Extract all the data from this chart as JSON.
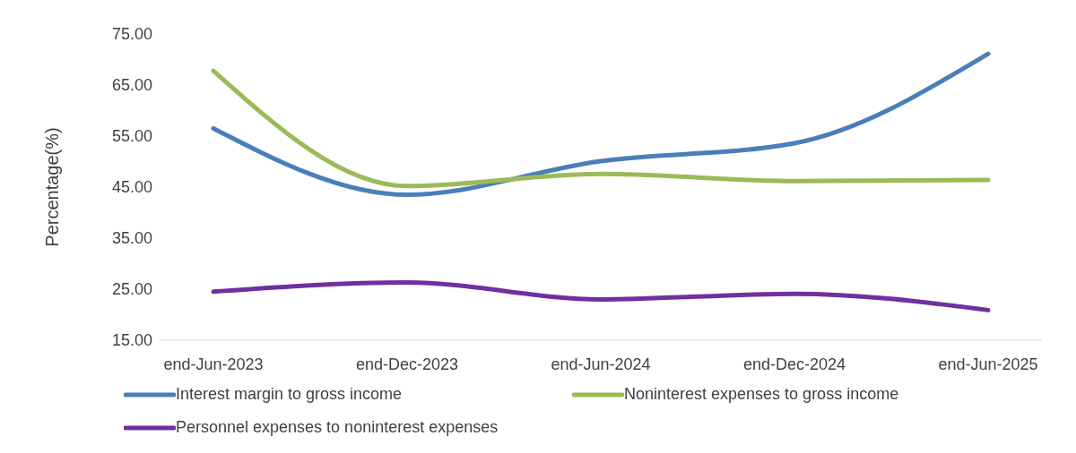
{
  "chart_data": {
    "type": "line",
    "ylabel": "Percentage(%)",
    "categories": [
      "end-Jun-2023",
      "end-Dec-2023",
      "end-Jun-2024",
      "end-Dec-2024",
      "end-Jun-2025"
    ],
    "series": [
      {
        "name": "Interest margin to gross income",
        "color": "#4a7ebb",
        "values": [
          56.5,
          43.5,
          50.1,
          53.6,
          71.1
        ]
      },
      {
        "name": "Noninterest expenses to gross income",
        "color": "#9bbb59",
        "values": [
          67.8,
          45.2,
          47.6,
          46.2,
          46.4
        ]
      },
      {
        "name": "Personnel expenses to noninterest expenses",
        "color": "#7030a0",
        "values": [
          24.5,
          26.3,
          23.0,
          24.1,
          20.9
        ]
      }
    ],
    "ylim": [
      15,
      75
    ],
    "yticks": [
      {
        "value": 15,
        "label": "15.00"
      },
      {
        "value": 25,
        "label": "25.00"
      },
      {
        "value": 35,
        "label": "35.00"
      },
      {
        "value": 45,
        "label": "45.00"
      },
      {
        "value": 55,
        "label": "55.00"
      },
      {
        "value": 65,
        "label": "65.00"
      },
      {
        "value": 75,
        "label": "75.00"
      }
    ],
    "grid": false,
    "legend": "bottom",
    "marker": "none",
    "line_style": "solid"
  }
}
